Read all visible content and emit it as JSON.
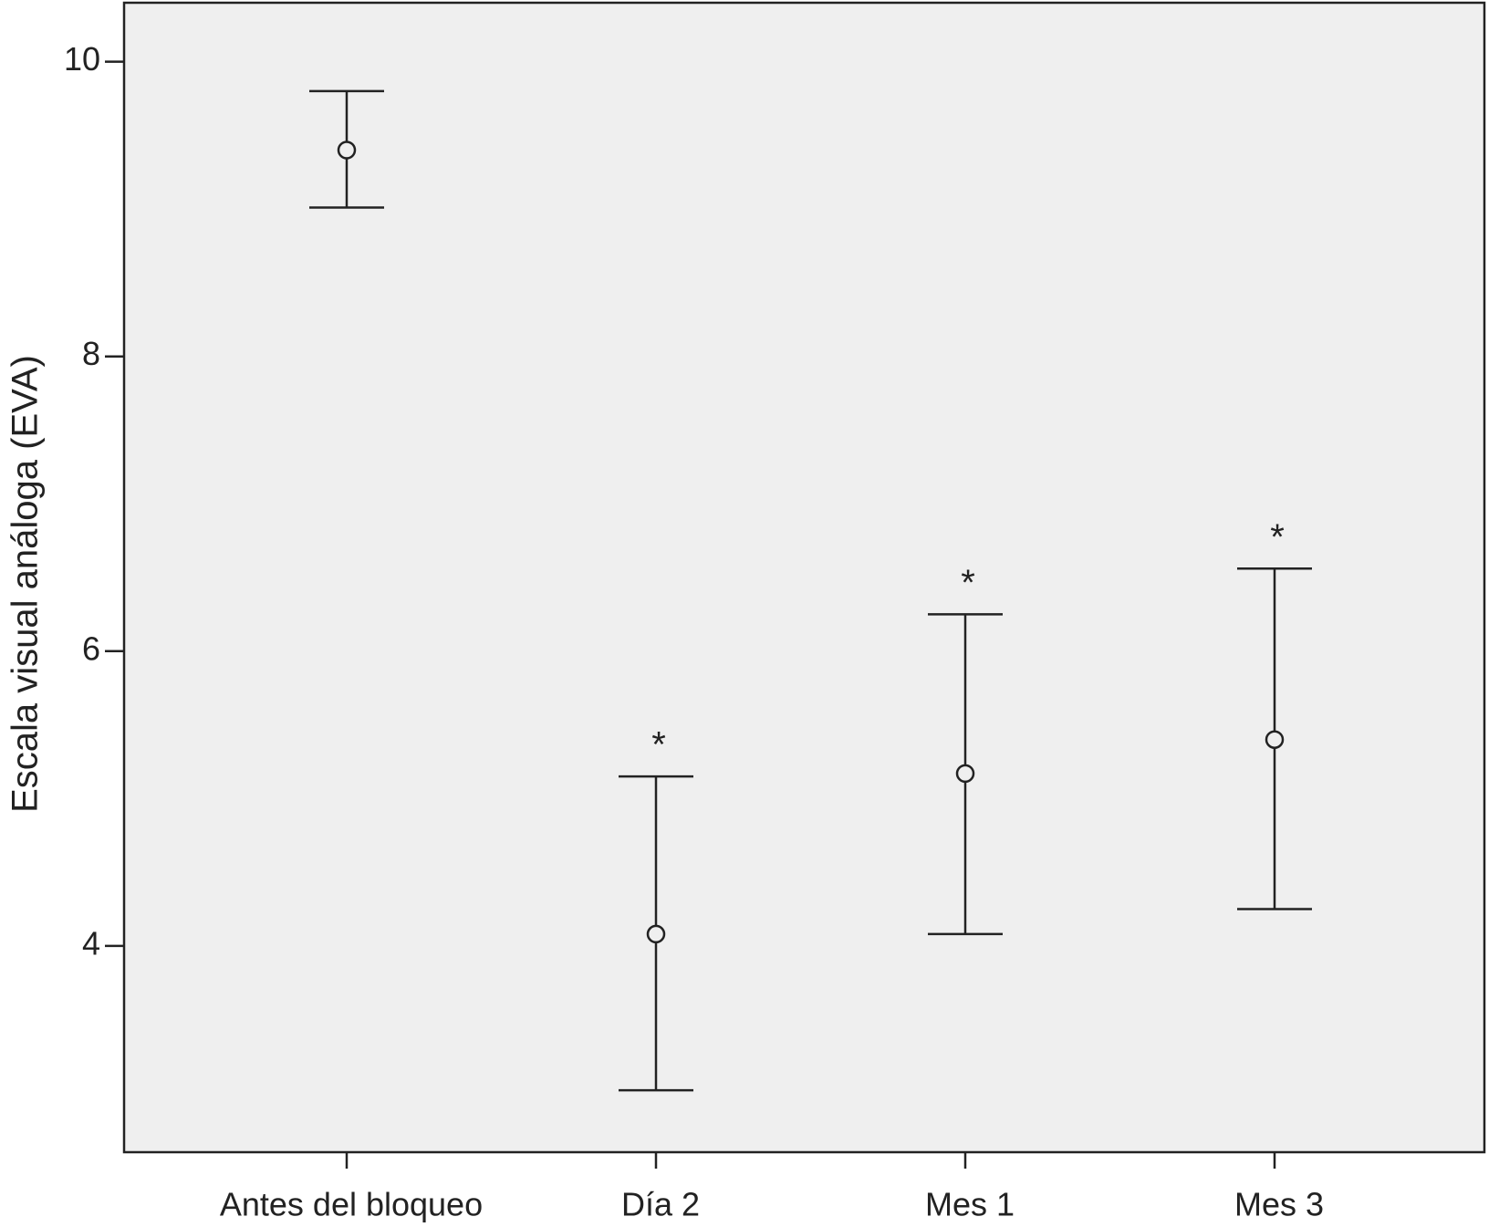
{
  "chart_data": {
    "type": "errorbar",
    "ylabel": "Escala visual análoga (EVA)",
    "categories": [
      "Antes del bloqueo",
      "Día 2",
      "Mes 1",
      "Mes 3"
    ],
    "values": [
      9.4,
      4.08,
      5.17,
      5.4
    ],
    "lower": [
      9.01,
      3.02,
      4.08,
      4.25
    ],
    "upper": [
      9.8,
      5.15,
      6.25,
      6.56
    ],
    "annotations": [
      null,
      "*",
      "*",
      "*"
    ],
    "ylim": [
      2.6,
      10.4
    ],
    "yticks": [
      4,
      6,
      8,
      10
    ],
    "color": "#222222",
    "background": "#efefef"
  }
}
